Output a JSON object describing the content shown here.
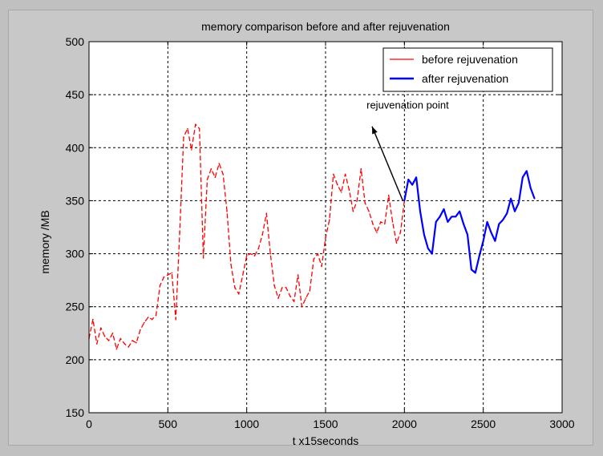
{
  "chart_data": {
    "type": "line",
    "title": "memory comparison before and after rejuvenation",
    "xlabel": "t    x15seconds",
    "ylabel": "memory        /MB",
    "xlim": [
      0,
      3000
    ],
    "ylim": [
      150,
      500
    ],
    "xticks": [
      0,
      500,
      1000,
      1500,
      2000,
      2500,
      3000
    ],
    "yticks": [
      150,
      200,
      250,
      300,
      350,
      400,
      450,
      500
    ],
    "grid": true,
    "legend_position": "top-right",
    "annotation": {
      "text": "rejuvenation point",
      "x": 1760,
      "y": 437,
      "arrow_from": [
        1990,
        350
      ],
      "arrow_to": [
        1795,
        420
      ]
    },
    "series": [
      {
        "name": "before rejuvenation",
        "color": "#ff0000",
        "style": "dashed",
        "x": [
          0,
          25,
          50,
          75,
          100,
          125,
          150,
          175,
          200,
          225,
          250,
          275,
          300,
          325,
          350,
          375,
          400,
          425,
          450,
          475,
          500,
          525,
          550,
          575,
          600,
          625,
          650,
          675,
          700,
          725,
          750,
          775,
          800,
          825,
          850,
          875,
          900,
          925,
          950,
          975,
          1000,
          1025,
          1050,
          1075,
          1100,
          1125,
          1150,
          1175,
          1200,
          1225,
          1250,
          1275,
          1300,
          1325,
          1350,
          1375,
          1400,
          1425,
          1450,
          1475,
          1500,
          1525,
          1550,
          1575,
          1600,
          1625,
          1650,
          1675,
          1700,
          1725,
          1750,
          1775,
          1800,
          1825,
          1850,
          1875,
          1900,
          1925,
          1950,
          1975,
          2000
        ],
        "y": [
          220,
          238,
          215,
          230,
          222,
          218,
          225,
          210,
          220,
          215,
          212,
          218,
          216,
          228,
          235,
          240,
          238,
          242,
          270,
          278,
          280,
          282,
          238,
          320,
          410,
          418,
          398,
          422,
          418,
          296,
          370,
          380,
          372,
          385,
          375,
          340,
          290,
          268,
          262,
          280,
          298,
          300,
          298,
          305,
          318,
          338,
          300,
          270,
          258,
          268,
          268,
          260,
          255,
          280,
          250,
          258,
          265,
          295,
          300,
          288,
          315,
          332,
          375,
          365,
          358,
          375,
          360,
          340,
          350,
          380,
          348,
          340,
          328,
          320,
          330,
          328,
          355,
          330,
          310,
          320,
          350
        ]
      },
      {
        "name": "after rejuvenation",
        "color": "#0000ff",
        "style": "solid",
        "x": [
          2000,
          2025,
          2050,
          2075,
          2100,
          2125,
          2150,
          2175,
          2200,
          2225,
          2250,
          2275,
          2300,
          2325,
          2350,
          2375,
          2400,
          2425,
          2450,
          2475,
          2500,
          2525,
          2550,
          2575,
          2600,
          2625,
          2650,
          2675,
          2700,
          2725,
          2750,
          2775,
          2800,
          2825
        ],
        "y": [
          350,
          370,
          365,
          372,
          340,
          318,
          305,
          300,
          330,
          335,
          342,
          330,
          335,
          335,
          340,
          328,
          318,
          285,
          282,
          298,
          312,
          330,
          320,
          312,
          328,
          332,
          338,
          352,
          340,
          348,
          372,
          378,
          362,
          352
        ]
      }
    ]
  }
}
